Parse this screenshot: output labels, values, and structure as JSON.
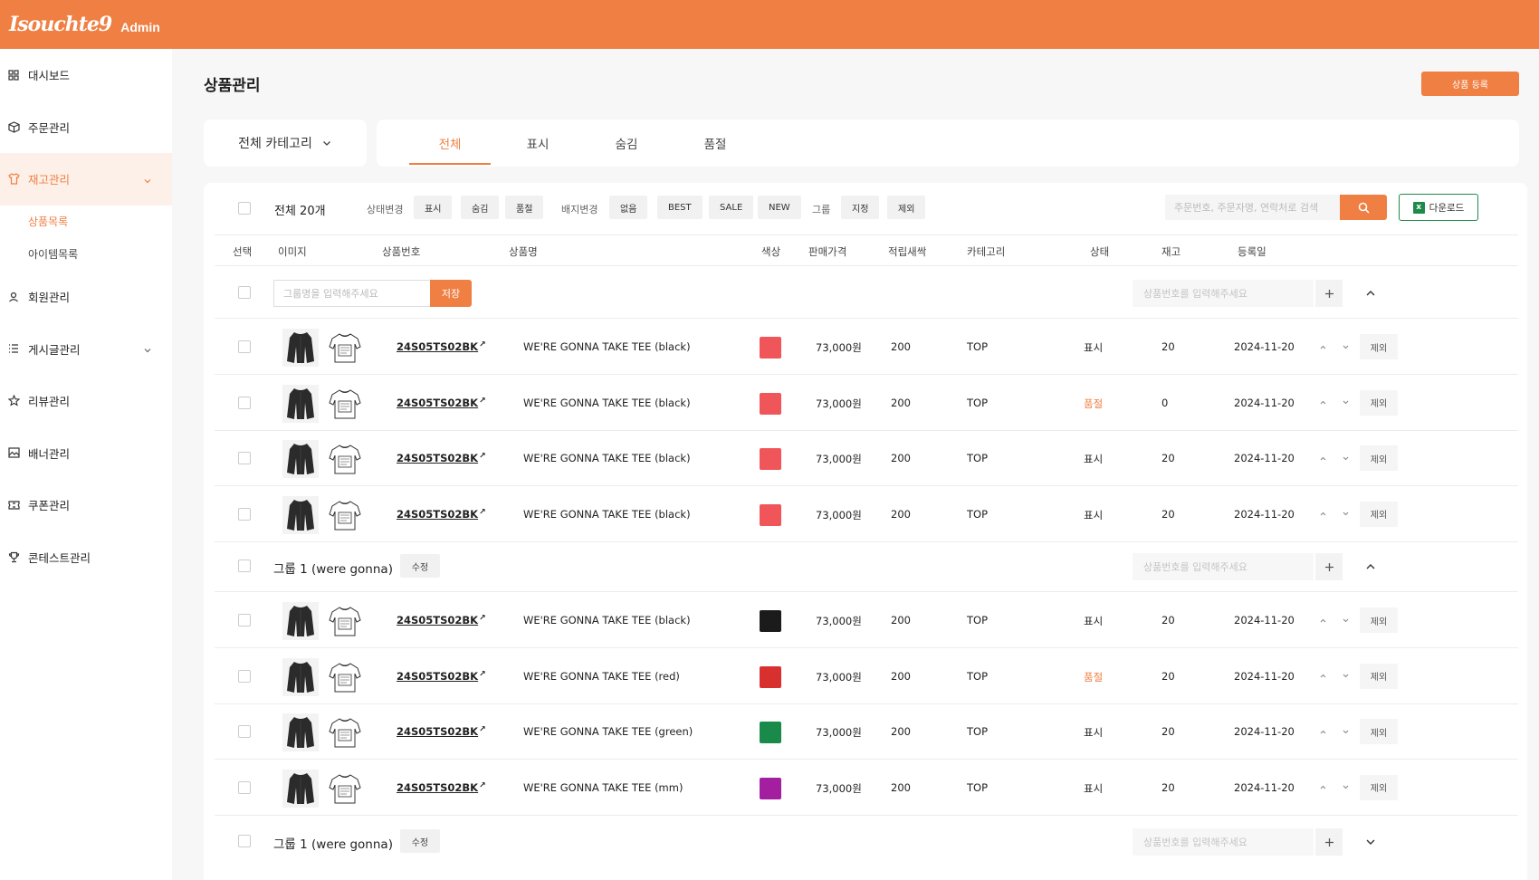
{
  "header": {
    "logo": "Isouchte9",
    "sub": "Admin"
  },
  "sidebar": {
    "items": [
      {
        "label": "대시보드",
        "icon": "dashboard-icon"
      },
      {
        "label": "주문관리",
        "icon": "box-icon"
      },
      {
        "label": "재고관리",
        "icon": "shirt-icon",
        "active": true,
        "expanded": true
      },
      {
        "label": "회원관리",
        "icon": "user-icon"
      },
      {
        "label": "게시글관리",
        "icon": "list-icon",
        "has_chevron": true
      },
      {
        "label": "리뷰관리",
        "icon": "star-icon"
      },
      {
        "label": "배너관리",
        "icon": "image-icon"
      },
      {
        "label": "쿠폰관리",
        "icon": "ticket-icon"
      },
      {
        "label": "콘테스트관리",
        "icon": "trophy-icon"
      }
    ],
    "subitems": [
      {
        "label": "상품목록",
        "active": true
      },
      {
        "label": "아이템목록"
      }
    ]
  },
  "page": {
    "title": "상품관리",
    "register_button": "상품 등록"
  },
  "category_select": "전체 카테고리",
  "tabs": [
    "전체",
    "표시",
    "숨김",
    "품절"
  ],
  "toolbar": {
    "total": "전체 20개",
    "status_label": "상태변경",
    "status_options": [
      "표시",
      "숨김",
      "품절"
    ],
    "badge_label": "배지변경",
    "badge_options": [
      "없음",
      "BEST",
      "SALE",
      "NEW"
    ],
    "group_label": "그룹",
    "group_options": [
      "지정",
      "제외"
    ],
    "search_placeholder": "주문번호, 주문자명, 연락처로 검색",
    "download_label": "다운로드"
  },
  "table": {
    "headers": [
      "선택",
      "이미지",
      "상품번호",
      "상품명",
      "색상",
      "판매가격",
      "적립새싹",
      "카테고리",
      "상태",
      "재고",
      "등록일"
    ],
    "new_group": {
      "placeholder": "그룹명을 입력해주세요",
      "save_label": "저장",
      "code_placeholder": "상품번호를 입력해주세요"
    },
    "rows_a": [
      {
        "code": "24S05TS02BK",
        "name": "WE'RE GONNA TAKE TEE (black)",
        "color": "#f0555a",
        "price": "73,000원",
        "points": "200",
        "category": "TOP",
        "status": "표시",
        "stock": "20",
        "date": "2024-11-20",
        "exclude": "제외"
      },
      {
        "code": "24S05TS02BK",
        "name": "WE'RE GONNA TAKE TEE (black)",
        "color": "#f0555a",
        "price": "73,000원",
        "points": "200",
        "category": "TOP",
        "status": "품절",
        "stock": "0",
        "date": "2024-11-20",
        "exclude": "제외"
      },
      {
        "code": "24S05TS02BK",
        "name": "WE'RE GONNA TAKE TEE (black)",
        "color": "#f0555a",
        "price": "73,000원",
        "points": "200",
        "category": "TOP",
        "status": "표시",
        "stock": "20",
        "date": "2024-11-20",
        "exclude": "제외"
      },
      {
        "code": "24S05TS02BK",
        "name": "WE'RE GONNA TAKE TEE (black)",
        "color": "#f0555a",
        "price": "73,000원",
        "points": "200",
        "category": "TOP",
        "status": "표시",
        "stock": "20",
        "date": "2024-11-20",
        "exclude": "제외"
      }
    ],
    "group1": {
      "title": "그룹 1 (were gonna)",
      "edit_label": "수정",
      "code_placeholder": "상품번호를 입력해주세요"
    },
    "rows_b": [
      {
        "code": "24S05TS02BK",
        "name": "WE'RE GONNA TAKE TEE (black)",
        "color": "#1b1b1b",
        "price": "73,000원",
        "points": "200",
        "category": "TOP",
        "status": "표시",
        "stock": "20",
        "date": "2024-11-20",
        "exclude": "제외"
      },
      {
        "code": "24S05TS02BK",
        "name": "WE'RE GONNA TAKE TEE (red)",
        "color": "#d8302f",
        "price": "73,000원",
        "points": "200",
        "category": "TOP",
        "status": "품절",
        "stock": "20",
        "date": "2024-11-20",
        "exclude": "제외"
      },
      {
        "code": "24S05TS02BK",
        "name": "WE'RE GONNA TAKE TEE (green)",
        "color": "#1a8a4a",
        "price": "73,000원",
        "points": "200",
        "category": "TOP",
        "status": "표시",
        "stock": "20",
        "date": "2024-11-20",
        "exclude": "제외"
      },
      {
        "code": "24S05TS02BK",
        "name": "WE'RE GONNA TAKE TEE (mm)",
        "color": "#a31fa0",
        "price": "73,000원",
        "points": "200",
        "category": "TOP",
        "status": "표시",
        "stock": "20",
        "date": "2024-11-20",
        "exclude": "제외"
      }
    ],
    "group2": {
      "title": "그룹 1 (were gonna)",
      "edit_label": "수정",
      "code_placeholder": "상품번호를 입력해주세요"
    }
  },
  "colors": {
    "accent": "#ef7f43",
    "excel_green": "#1e8a4a"
  }
}
